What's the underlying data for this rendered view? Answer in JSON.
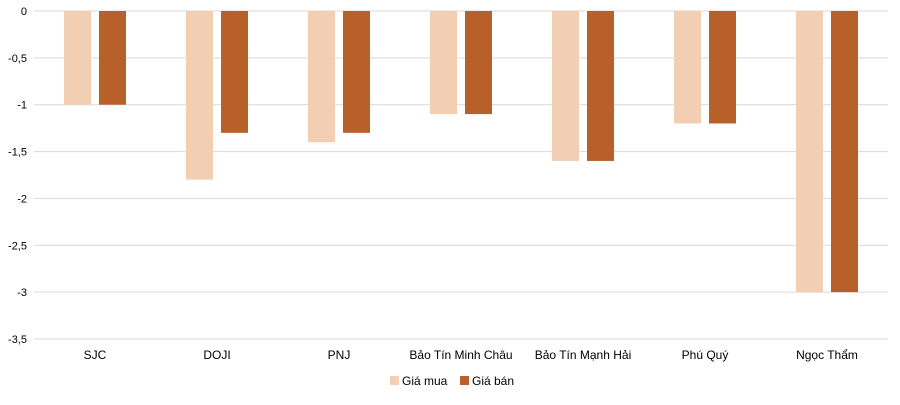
{
  "chart_data": {
    "type": "bar",
    "title": "",
    "xlabel": "",
    "ylabel": "",
    "ylim": [
      -3.5,
      0
    ],
    "y_ticks": [
      "0",
      "-0,5",
      "-1",
      "-1,5",
      "-2",
      "-2,5",
      "-3",
      "-3,5"
    ],
    "y_tick_values": [
      0,
      -0.5,
      -1,
      -1.5,
      -2,
      -2.5,
      -3,
      -3.5
    ],
    "grid": true,
    "legend_position": "bottom",
    "categories": [
      "SJC",
      "DOJI",
      "PNJ",
      "Bảo Tín Minh Châu",
      "Bảo Tín Mạnh Hải",
      "Phú Quý",
      "Ngọc Thẩm"
    ],
    "series": [
      {
        "name": "Giá mua",
        "color": "#F2CFB2",
        "values": [
          -1,
          -1.8,
          -1.4,
          -1.1,
          -1.6,
          -1.2,
          -3
        ]
      },
      {
        "name": "Giá bán",
        "color": "#B8602A",
        "values": [
          -1,
          -1.3,
          -1.3,
          -1.1,
          -1.6,
          -1.2,
          -3
        ]
      }
    ]
  },
  "colors": {
    "grid": "#D9D9D9",
    "text": "#000000"
  }
}
